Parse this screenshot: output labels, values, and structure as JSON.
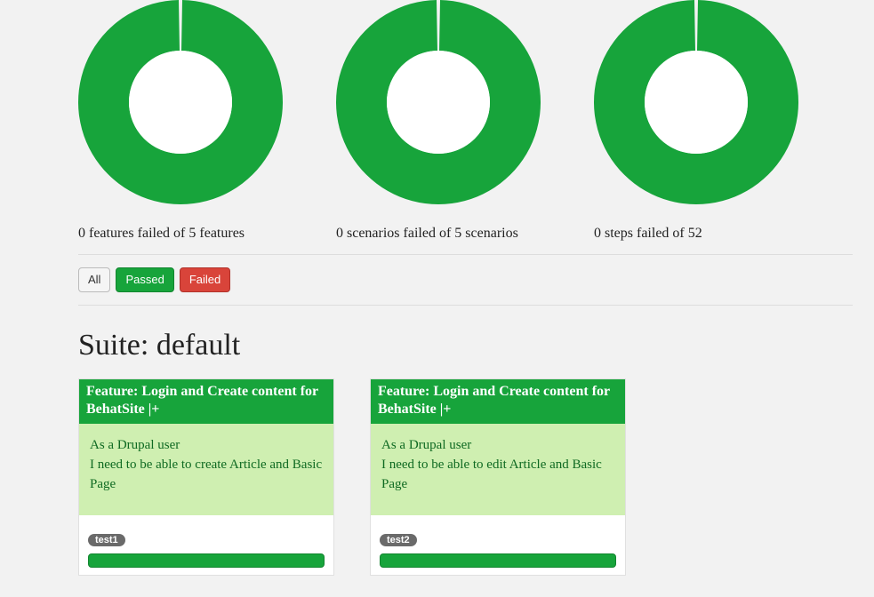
{
  "colors": {
    "green": "#17a43b",
    "green_border": "#12852f",
    "red": "#d9443a",
    "red_border": "#b0312a",
    "gray_button_bg": "#f5f5f5",
    "gray_button_border": "#bbbbbb",
    "feature_body_bg": "#cfefb1",
    "feature_body_text": "#0f6a22",
    "tag_bg": "#6a6a6a",
    "page_bg": "#f2f2f2",
    "divider": "#dddddd",
    "text": "#222222"
  },
  "charts": [
    {
      "type": "donut",
      "caption": "0 features failed of 5 features",
      "slices": [
        {
          "label": "passed",
          "value": 5,
          "color": "#17a43b"
        },
        {
          "label": "failed",
          "value": 0,
          "color": "#d9443a"
        }
      ],
      "outer_radius": 115,
      "inner_radius": 58,
      "gap_deg": 2,
      "background": "#ffffff"
    },
    {
      "type": "donut",
      "caption": "0 scenarios failed of 5 scenarios",
      "slices": [
        {
          "label": "passed",
          "value": 5,
          "color": "#17a43b"
        },
        {
          "label": "failed",
          "value": 0,
          "color": "#d9443a"
        }
      ],
      "outer_radius": 115,
      "inner_radius": 58,
      "gap_deg": 2,
      "background": "#ffffff"
    },
    {
      "type": "donut",
      "caption": "0 steps failed of 52",
      "slices": [
        {
          "label": "passed",
          "value": 52,
          "color": "#17a43b"
        },
        {
          "label": "failed",
          "value": 0,
          "color": "#d9443a"
        }
      ],
      "outer_radius": 115,
      "inner_radius": 58,
      "gap_deg": 2,
      "background": "#ffffff"
    }
  ],
  "filters": {
    "all": "All",
    "passed": "Passed",
    "failed": "Failed"
  },
  "suite": {
    "title": "Suite: default"
  },
  "features": [
    {
      "header": "Feature: Login and Create content for BehatSite |+",
      "body_lines": [
        "As a Drupal user",
        "I need to be able to create Article and Basic Page"
      ],
      "tag": "test1",
      "progress_pct": 100,
      "progress_color": "#17a43b"
    },
    {
      "header": "Feature: Login and Create content for BehatSite |+",
      "body_lines": [
        "As a Drupal user",
        "I need to be able to edit Article and Basic Page"
      ],
      "tag": "test2",
      "progress_pct": 100,
      "progress_color": "#17a43b"
    }
  ]
}
